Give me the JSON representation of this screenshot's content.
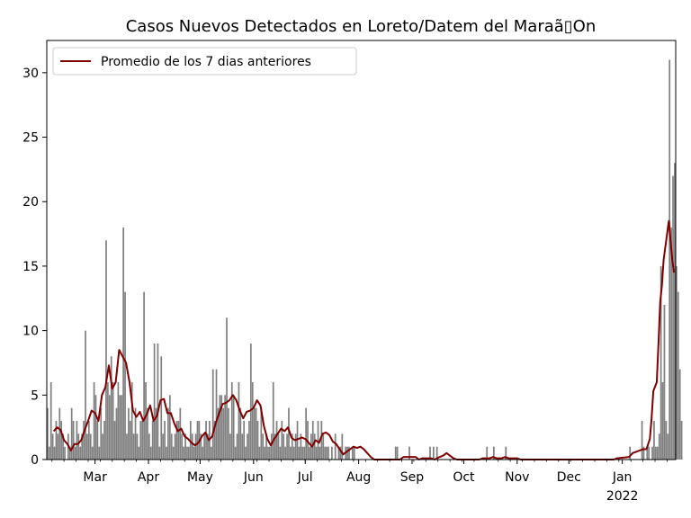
{
  "chart_data": {
    "type": "bar",
    "title": "Casos Nuevos Detectados en Loreto/Datem del Maraã▯On",
    "xlabel": "",
    "ylabel": "",
    "ylim": [
      0,
      32.5
    ],
    "yticks": [
      0,
      5,
      10,
      15,
      20,
      25,
      30
    ],
    "xlim": [
      "2021-02-01",
      "2022-02-01"
    ],
    "xticks": [
      {
        "date": "2021-03-01",
        "label": "Mar"
      },
      {
        "date": "2021-04-01",
        "label": "Apr"
      },
      {
        "date": "2021-05-01",
        "label": "May"
      },
      {
        "date": "2021-06-01",
        "label": "Jun"
      },
      {
        "date": "2021-07-01",
        "label": "Jul"
      },
      {
        "date": "2021-08-01",
        "label": "Aug"
      },
      {
        "date": "2021-09-01",
        "label": "Sep"
      },
      {
        "date": "2021-10-01",
        "label": "Oct"
      },
      {
        "date": "2021-11-01",
        "label": "Nov"
      },
      {
        "date": "2021-12-01",
        "label": "Dec"
      },
      {
        "date": "2022-01-01",
        "label": "Jan",
        "sublabel": "2022"
      }
    ],
    "bar_series": {
      "color": "#808080",
      "start_date": "2021-02-01",
      "values": [
        4,
        1,
        6,
        2,
        1,
        3,
        2,
        4,
        3,
        2,
        1,
        0,
        2,
        1,
        4,
        3,
        1,
        3,
        2,
        1,
        2,
        3,
        10,
        2,
        3,
        2,
        1,
        6,
        5,
        3,
        1,
        4,
        2,
        3,
        17,
        6,
        5,
        8,
        6,
        3,
        4,
        6,
        5,
        5,
        18,
        13,
        2,
        4,
        3,
        6,
        2,
        4,
        2,
        1,
        3,
        3,
        13,
        6,
        4,
        2,
        1,
        3,
        9,
        4,
        9,
        1,
        8,
        2,
        3,
        1,
        4,
        5,
        2,
        1,
        2,
        3,
        3,
        4,
        2,
        1,
        2,
        1,
        1,
        3,
        2,
        1,
        2,
        3,
        3,
        2,
        1,
        2,
        3,
        2,
        3,
        1,
        7,
        3,
        7,
        4,
        5,
        5,
        4,
        5,
        11,
        4,
        2,
        6,
        5,
        1,
        2,
        6,
        4,
        2,
        3,
        1,
        2,
        3,
        9,
        6,
        4,
        4,
        3,
        1,
        4,
        2,
        1,
        2,
        1,
        1,
        2,
        6,
        2,
        3,
        2,
        1,
        3,
        2,
        1,
        2,
        4,
        1,
        2,
        1,
        2,
        3,
        1,
        2,
        1,
        1,
        4,
        3,
        1,
        2,
        3,
        2,
        1,
        3,
        1,
        3,
        2,
        1,
        1,
        1,
        0,
        1,
        0,
        2,
        0,
        1,
        1,
        2,
        0,
        1,
        1,
        1,
        0,
        1,
        1,
        0,
        0,
        0,
        0,
        0,
        0,
        0,
        0,
        0,
        0,
        0,
        0,
        0,
        0,
        0,
        0,
        0,
        0,
        0,
        0,
        0,
        0,
        0,
        1,
        1,
        0,
        0,
        0,
        0,
        0,
        0,
        1,
        0,
        0,
        0,
        0,
        0,
        0,
        0,
        0,
        0,
        0,
        0,
        1,
        0,
        1,
        0,
        1,
        0,
        0,
        0,
        0,
        0,
        0,
        0,
        0,
        0,
        0,
        0,
        0,
        0,
        0,
        0,
        0,
        0,
        0,
        0,
        0,
        0,
        0,
        0,
        0,
        0,
        0,
        0,
        0,
        1,
        0,
        0,
        0,
        1,
        0,
        0,
        0,
        0,
        0,
        0,
        1,
        0,
        0,
        0,
        0,
        0,
        0,
        0,
        0,
        0,
        0,
        0,
        0,
        0,
        0,
        0,
        0,
        0,
        0,
        0,
        0,
        0,
        0,
        0,
        0,
        0,
        0,
        0,
        0,
        0,
        0,
        0,
        0,
        0,
        0,
        0,
        0,
        0,
        0,
        0,
        0,
        0,
        0,
        0,
        0,
        0,
        0,
        0,
        0,
        0,
        0,
        0,
        0,
        0,
        0,
        0,
        0,
        0,
        0,
        0,
        0,
        0,
        0,
        0,
        0,
        0,
        0,
        0,
        0,
        0,
        0,
        0,
        1,
        0,
        0,
        0,
        0,
        0,
        0,
        3,
        1,
        0,
        1,
        1,
        0,
        1,
        3,
        1,
        1,
        2,
        15,
        6,
        12,
        3,
        2,
        31,
        18,
        22,
        23,
        15,
        13,
        7,
        3
      ]
    },
    "line_series": {
      "name": "Promedio de los 7 dias anteriores",
      "color": "#800000",
      "points": [
        [
          "2021-02-05",
          2.2
        ],
        [
          "2021-02-07",
          2.5
        ],
        [
          "2021-02-09",
          2.3
        ],
        [
          "2021-02-11",
          1.5
        ],
        [
          "2021-02-13",
          1.2
        ],
        [
          "2021-02-15",
          0.7
        ],
        [
          "2021-02-17",
          1.2
        ],
        [
          "2021-02-19",
          1.2
        ],
        [
          "2021-02-21",
          1.5
        ],
        [
          "2021-02-23",
          2.3
        ],
        [
          "2021-02-25",
          3.0
        ],
        [
          "2021-02-27",
          3.8
        ],
        [
          "2021-03-01",
          3.6
        ],
        [
          "2021-03-03",
          3.0
        ],
        [
          "2021-03-05",
          5.0
        ],
        [
          "2021-03-07",
          5.6
        ],
        [
          "2021-03-09",
          7.3
        ],
        [
          "2021-03-11",
          5.5
        ],
        [
          "2021-03-13",
          6.0
        ],
        [
          "2021-03-15",
          8.5
        ],
        [
          "2021-03-17",
          8.0
        ],
        [
          "2021-03-19",
          7.5
        ],
        [
          "2021-03-21",
          6.0
        ],
        [
          "2021-03-23",
          3.8
        ],
        [
          "2021-03-25",
          3.3
        ],
        [
          "2021-03-27",
          3.7
        ],
        [
          "2021-03-29",
          3.0
        ],
        [
          "2021-03-31",
          3.5
        ],
        [
          "2021-04-02",
          4.2
        ],
        [
          "2021-04-04",
          3.0
        ],
        [
          "2021-04-06",
          3.4
        ],
        [
          "2021-04-08",
          4.6
        ],
        [
          "2021-04-10",
          4.7
        ],
        [
          "2021-04-12",
          3.6
        ],
        [
          "2021-04-14",
          3.6
        ],
        [
          "2021-04-16",
          2.8
        ],
        [
          "2021-04-18",
          2.2
        ],
        [
          "2021-04-20",
          2.4
        ],
        [
          "2021-04-22",
          1.8
        ],
        [
          "2021-04-24",
          1.6
        ],
        [
          "2021-04-26",
          1.3
        ],
        [
          "2021-04-28",
          1.1
        ],
        [
          "2021-04-30",
          1.3
        ],
        [
          "2021-05-02",
          1.8
        ],
        [
          "2021-05-04",
          2.1
        ],
        [
          "2021-05-06",
          1.5
        ],
        [
          "2021-05-08",
          1.8
        ],
        [
          "2021-05-10",
          2.8
        ],
        [
          "2021-05-12",
          3.6
        ],
        [
          "2021-05-14",
          4.3
        ],
        [
          "2021-05-16",
          4.4
        ],
        [
          "2021-05-18",
          4.6
        ],
        [
          "2021-05-20",
          5.0
        ],
        [
          "2021-05-22",
          4.6
        ],
        [
          "2021-05-24",
          3.8
        ],
        [
          "2021-05-26",
          3.2
        ],
        [
          "2021-05-28",
          3.7
        ],
        [
          "2021-05-30",
          3.8
        ],
        [
          "2021-06-01",
          4.0
        ],
        [
          "2021-06-03",
          4.6
        ],
        [
          "2021-06-05",
          4.2
        ],
        [
          "2021-06-07",
          2.6
        ],
        [
          "2021-06-09",
          1.6
        ],
        [
          "2021-06-11",
          1.1
        ],
        [
          "2021-06-13",
          1.6
        ],
        [
          "2021-06-15",
          2.0
        ],
        [
          "2021-06-17",
          2.4
        ],
        [
          "2021-06-19",
          2.2
        ],
        [
          "2021-06-21",
          2.5
        ],
        [
          "2021-06-23",
          1.7
        ],
        [
          "2021-06-25",
          1.5
        ],
        [
          "2021-06-27",
          1.6
        ],
        [
          "2021-06-29",
          1.7
        ],
        [
          "2021-07-01",
          1.6
        ],
        [
          "2021-07-03",
          1.3
        ],
        [
          "2021-07-05",
          1.0
        ],
        [
          "2021-07-07",
          1.5
        ],
        [
          "2021-07-09",
          1.3
        ],
        [
          "2021-07-11",
          2.0
        ],
        [
          "2021-07-13",
          2.1
        ],
        [
          "2021-07-15",
          1.9
        ],
        [
          "2021-07-17",
          1.4
        ],
        [
          "2021-07-19",
          1.2
        ],
        [
          "2021-07-21",
          0.8
        ],
        [
          "2021-07-23",
          0.4
        ],
        [
          "2021-07-25",
          0.6
        ],
        [
          "2021-07-27",
          0.8
        ],
        [
          "2021-07-29",
          1.0
        ],
        [
          "2021-07-31",
          0.9
        ],
        [
          "2021-08-02",
          1.0
        ],
        [
          "2021-08-04",
          0.8
        ],
        [
          "2021-08-06",
          0.5
        ],
        [
          "2021-08-08",
          0.2
        ],
        [
          "2021-08-10",
          0.0
        ],
        [
          "2021-08-25",
          0.0
        ],
        [
          "2021-08-27",
          0.2
        ],
        [
          "2021-09-03",
          0.2
        ],
        [
          "2021-09-05",
          0.0
        ],
        [
          "2021-09-07",
          0.1
        ],
        [
          "2021-09-12",
          0.1
        ],
        [
          "2021-09-14",
          0.0
        ],
        [
          "2021-09-17",
          0.2
        ],
        [
          "2021-09-19",
          0.3
        ],
        [
          "2021-09-21",
          0.5
        ],
        [
          "2021-09-23",
          0.3
        ],
        [
          "2021-09-25",
          0.1
        ],
        [
          "2021-09-27",
          0.0
        ],
        [
          "2021-10-10",
          0.0
        ],
        [
          "2021-10-12",
          0.1
        ],
        [
          "2021-10-16",
          0.1
        ],
        [
          "2021-10-18",
          0.2
        ],
        [
          "2021-10-20",
          0.1
        ],
        [
          "2021-10-23",
          0.1
        ],
        [
          "2021-10-25",
          0.2
        ],
        [
          "2021-10-27",
          0.1
        ],
        [
          "2021-11-01",
          0.1
        ],
        [
          "2021-11-03",
          0.0
        ],
        [
          "2021-12-27",
          0.0
        ],
        [
          "2021-12-29",
          0.1
        ],
        [
          "2022-01-05",
          0.2
        ],
        [
          "2022-01-07",
          0.5
        ],
        [
          "2022-01-09",
          0.6
        ],
        [
          "2022-01-11",
          0.7
        ],
        [
          "2022-01-13",
          0.8
        ],
        [
          "2022-01-15",
          0.8
        ],
        [
          "2022-01-17",
          1.6
        ],
        [
          "2022-01-18",
          3.2
        ],
        [
          "2022-01-19",
          5.3
        ],
        [
          "2022-01-21",
          6.0
        ],
        [
          "2022-01-22",
          9.0
        ],
        [
          "2022-01-23",
          12.2
        ],
        [
          "2022-01-24",
          13.5
        ],
        [
          "2022-01-25",
          15.5
        ],
        [
          "2022-01-26",
          16.5
        ],
        [
          "2022-01-27",
          17.5
        ],
        [
          "2022-01-28",
          18.5
        ],
        [
          "2022-01-29",
          17.0
        ],
        [
          "2022-01-30",
          15.5
        ],
        [
          "2022-01-31",
          14.5
        ]
      ]
    },
    "legend": {
      "position": "top-left",
      "entries": [
        "Promedio de los 7 dias anteriores"
      ]
    },
    "grid": false
  }
}
